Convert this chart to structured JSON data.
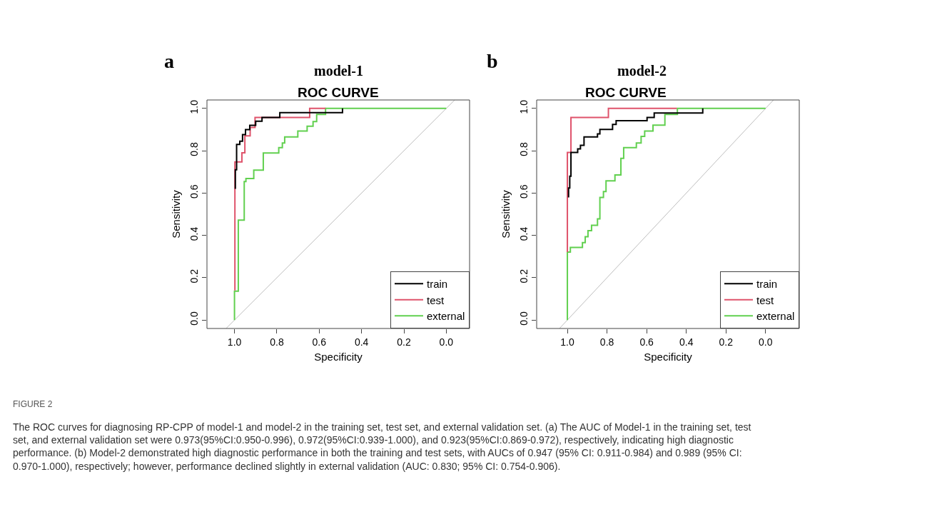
{
  "chart_data": [
    {
      "type": "line",
      "title": "model-1",
      "subtitle": "ROC CURVE",
      "xlabel": "Specificity",
      "ylabel": "Sensitivity",
      "annotations": [
        "a",
        "FIGURE 2",
        "The ROC curves for diagnosing RP-CPP of model-1 and model-2 in the training set, test set, and external validation set. (a) The AUC of Model-1 in the training set, test set, and external validation set were 0.973(95%CI:0.950-0.996), 0.972(95%CI:0.939-1.000), and 0.923(95%CI:0.869-0.972), respectively, indicating high diagnostic performance. (b) Model-2 demonstrated high diagnostic performance in both the training and test sets, with AUCs of 0.947 (95% CI: 0.911-0.984) and 0.989 (95% CI: 0.970-1.000), respectively; however, performance declined slightly in external validation (AUC: 0.830; 95% CI: 0.754-0.906)."
      ],
      "xlim": [
        1.13,
        -0.11
      ],
      "ylim": [
        -0.04,
        1.04
      ],
      "xticks": [
        {
          "value": 1,
          "label": "1.0"
        },
        {
          "value": 0.8,
          "label": "0.8"
        },
        {
          "value": 0.6,
          "label": "0.6"
        },
        {
          "value": 0.4,
          "label": "0.4"
        },
        {
          "value": 0.2,
          "label": "0.2"
        },
        {
          "value": 0,
          "label": "0.0"
        }
      ],
      "yticks": [
        {
          "value": 0,
          "label": "0.0"
        },
        {
          "value": 0.2,
          "label": "0.2"
        },
        {
          "value": 0.4,
          "label": "0.4"
        },
        {
          "value": 0.6,
          "label": "0.6"
        },
        {
          "value": 0.8,
          "label": "0.8"
        },
        {
          "value": 1,
          "label": "1.0"
        }
      ],
      "legend": "bottom right",
      "marker": "none",
      "line_style": "solid",
      "series": [
        {
          "color": "#bebebe",
          "x": [
            1.04,
            -0.04
          ],
          "values": [
            -0.04,
            1.04
          ]
        },
        {
          "name": "external",
          "color": "#61d04f",
          "x": [
            1.0,
            1.0,
            0.982,
            0.982,
            0.954,
            0.954,
            0.946,
            0.946,
            0.909,
            0.909,
            0.864,
            0.864,
            0.791,
            0.791,
            0.774,
            0.774,
            0.763,
            0.763,
            0.701,
            0.701,
            0.657,
            0.657,
            0.629,
            0.629,
            0.612,
            0.612,
            0.57,
            0.57,
            0.0
          ],
          "values": [
            0.0,
            0.136,
            0.136,
            0.472,
            0.472,
            0.654,
            0.654,
            0.669,
            0.669,
            0.708,
            0.708,
            0.789,
            0.789,
            0.815,
            0.815,
            0.837,
            0.837,
            0.865,
            0.865,
            0.893,
            0.893,
            0.916,
            0.916,
            0.938,
            0.938,
            0.972,
            0.972,
            1.0,
            1.0
          ]
        },
        {
          "name": "test",
          "color": "#df536b",
          "x": [
            0.998,
            0.998,
            0.965,
            0.965,
            0.951,
            0.951,
            0.926,
            0.926,
            0.903,
            0.903,
            0.645,
            0.645,
            0.57
          ],
          "values": [
            0.14,
            0.747,
            0.747,
            0.79,
            0.79,
            0.87,
            0.87,
            0.91,
            0.91,
            0.957,
            0.957,
            1.0,
            1.0
          ]
        },
        {
          "name": "train",
          "color": "#000000",
          "x": [
            0.996,
            0.996,
            0.99,
            0.99,
            0.975,
            0.975,
            0.962,
            0.962,
            0.948,
            0.948,
            0.928,
            0.928,
            0.9,
            0.9,
            0.87,
            0.87,
            0.786,
            0.786,
            0.49,
            0.49
          ],
          "values": [
            0.62,
            0.71,
            0.71,
            0.83,
            0.83,
            0.845,
            0.845,
            0.876,
            0.876,
            0.9,
            0.9,
            0.92,
            0.92,
            0.94,
            0.94,
            0.957,
            0.957,
            0.98,
            0.98,
            1.0
          ]
        }
      ]
    },
    {
      "type": "line",
      "title": "model-2",
      "subtitle": "ROC CURVE",
      "xlabel": "Specificity",
      "ylabel": "Sensitivity",
      "annotations": [
        "b"
      ],
      "xlim": [
        1.155,
        -0.17
      ],
      "ylim": [
        -0.04,
        1.04
      ],
      "xticks": [
        {
          "value": 1,
          "label": "1.0"
        },
        {
          "value": 0.8,
          "label": "0.8"
        },
        {
          "value": 0.6,
          "label": "0.6"
        },
        {
          "value": 0.4,
          "label": "0.4"
        },
        {
          "value": 0.2,
          "label": "0.2"
        },
        {
          "value": 0,
          "label": "0.0"
        }
      ],
      "yticks": [
        {
          "value": 0,
          "label": "0.0"
        },
        {
          "value": 0.2,
          "label": "0.2"
        },
        {
          "value": 0.4,
          "label": "0.4"
        },
        {
          "value": 0.6,
          "label": "0.6"
        },
        {
          "value": 0.8,
          "label": "0.8"
        },
        {
          "value": 1,
          "label": "1.0"
        }
      ],
      "legend": "bottom right",
      "marker": "none",
      "line_style": "solid",
      "series": [
        {
          "color": "#bebebe",
          "x": [
            1.04,
            -0.04
          ],
          "values": [
            -0.04,
            1.04
          ]
        },
        {
          "name": "external",
          "color": "#61d04f",
          "x": [
            1.0,
            1.0,
            0.985,
            0.985,
            0.924,
            0.924,
            0.91,
            0.91,
            0.896,
            0.896,
            0.878,
            0.878,
            0.848,
            0.848,
            0.836,
            0.836,
            0.818,
            0.818,
            0.805,
            0.805,
            0.76,
            0.76,
            0.73,
            0.73,
            0.716,
            0.716,
            0.652,
            0.652,
            0.628,
            0.628,
            0.61,
            0.61,
            0.568,
            0.568,
            0.508,
            0.508,
            0.445,
            0.445,
            0.0
          ],
          "values": [
            0.0,
            0.321,
            0.321,
            0.343,
            0.343,
            0.366,
            0.366,
            0.394,
            0.394,
            0.422,
            0.422,
            0.448,
            0.448,
            0.478,
            0.478,
            0.579,
            0.579,
            0.607,
            0.607,
            0.658,
            0.658,
            0.686,
            0.686,
            0.764,
            0.764,
            0.815,
            0.815,
            0.837,
            0.837,
            0.868,
            0.868,
            0.893,
            0.893,
            0.921,
            0.921,
            0.972,
            0.972,
            1.0,
            1.0
          ]
        },
        {
          "name": "test",
          "color": "#df536b",
          "x": [
            1.0,
            1.0,
            0.982,
            0.982,
            0.793,
            0.793,
            0.448
          ],
          "values": [
            0.321,
            0.792,
            0.792,
            0.957,
            0.957,
            1.0,
            1.0
          ]
        },
        {
          "name": "train",
          "color": "#000000",
          "x": [
            0.994,
            0.994,
            0.988,
            0.988,
            0.982,
            0.982,
            0.948,
            0.948,
            0.934,
            0.934,
            0.916,
            0.916,
            0.848,
            0.848,
            0.836,
            0.836,
            0.772,
            0.772,
            0.754,
            0.754,
            0.598,
            0.598,
            0.562,
            0.562,
            0.317,
            0.317
          ],
          "values": [
            0.579,
            0.624,
            0.624,
            0.68,
            0.68,
            0.792,
            0.792,
            0.809,
            0.809,
            0.826,
            0.826,
            0.865,
            0.865,
            0.88,
            0.88,
            0.901,
            0.901,
            0.924,
            0.924,
            0.942,
            0.942,
            0.957,
            0.957,
            0.978,
            0.978,
            1.0
          ]
        }
      ]
    }
  ]
}
